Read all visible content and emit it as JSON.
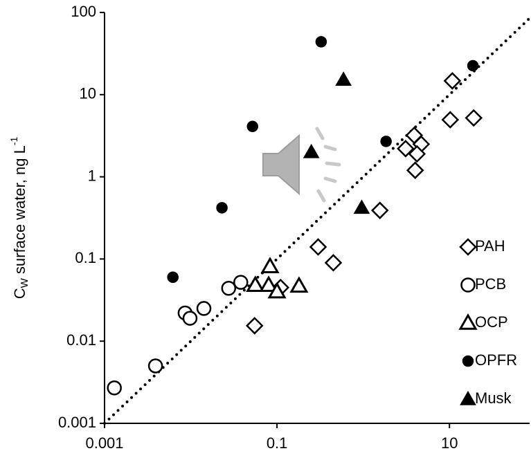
{
  "chart_data": {
    "type": "scatter",
    "ylabel_parts": [
      "C",
      "W",
      " surface water, ng L",
      "-1"
    ],
    "xlim": [
      0.001,
      85
    ],
    "ylim": [
      0.001,
      100
    ],
    "xticks": [
      0.001,
      0.1,
      10
    ],
    "yticks": [
      0.001,
      0.01,
      0.1,
      1,
      10,
      100
    ],
    "xscale": "log",
    "yscale": "log",
    "grid": false,
    "reference_line": "1:1",
    "legend": "lower right",
    "series": [
      {
        "name": "PAH",
        "color": "#000000",
        "marker": "diamond",
        "filled": false,
        "x": [
          10.8,
          10.2,
          19.1,
          3.9,
          3.1,
          4.7,
          4.2,
          4.0,
          1.56,
          0.3,
          0.45,
          0.11,
          0.055
        ],
        "values": [
          14.7,
          4.95,
          5.2,
          3.2,
          2.2,
          2.5,
          1.9,
          1.2,
          0.39,
          0.14,
          0.09,
          0.045,
          0.0154
        ]
      },
      {
        "name": "PCB",
        "color": "#000000",
        "marker": "circle",
        "filled": false,
        "x": [
          0.0013,
          0.0039,
          0.0086,
          0.0098,
          0.0142,
          0.0275,
          0.038
        ],
        "values": [
          0.0027,
          0.005,
          0.022,
          0.019,
          0.025,
          0.044,
          0.052
        ]
      },
      {
        "name": "OCP",
        "color": "#000000",
        "marker": "triangle",
        "filled": false,
        "x": [
          0.083,
          0.056,
          0.08,
          0.1,
          0.18
        ],
        "values": [
          0.081,
          0.048,
          0.048,
          0.04,
          0.047
        ]
      },
      {
        "name": "OPFR",
        "color": "#000000",
        "marker": "circle",
        "filled": true,
        "x": [
          0.325,
          18.7,
          0.052,
          1.84,
          0.023,
          0.0062
        ],
        "values": [
          44,
          22.5,
          4.1,
          2.7,
          0.42,
          0.06
        ]
      },
      {
        "name": "Musk",
        "color": "#000000",
        "marker": "triangle",
        "filled": true,
        "x": [
          0.59,
          0.25,
          0.96
        ],
        "values": [
          15.2,
          2.0,
          0.42
        ]
      }
    ]
  }
}
